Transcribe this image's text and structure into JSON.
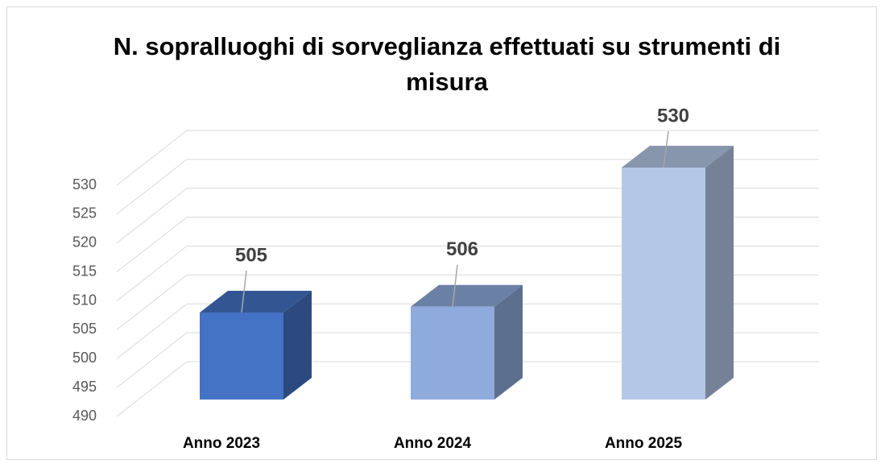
{
  "chart_data": {
    "type": "bar3d",
    "title": "N. sopralluoghi di sorveglianza effettuati su strumenti di misura",
    "categories": [
      "Anno 2023",
      "Anno 2024",
      "Anno 2025"
    ],
    "values": [
      505,
      506,
      530
    ],
    "colors": [
      "#4472c4",
      "#8faadc",
      "#b4c7e7"
    ],
    "ylim": [
      490,
      530
    ],
    "yticks": [
      490,
      495,
      500,
      505,
      510,
      515,
      520,
      525,
      530
    ],
    "grid": true
  }
}
